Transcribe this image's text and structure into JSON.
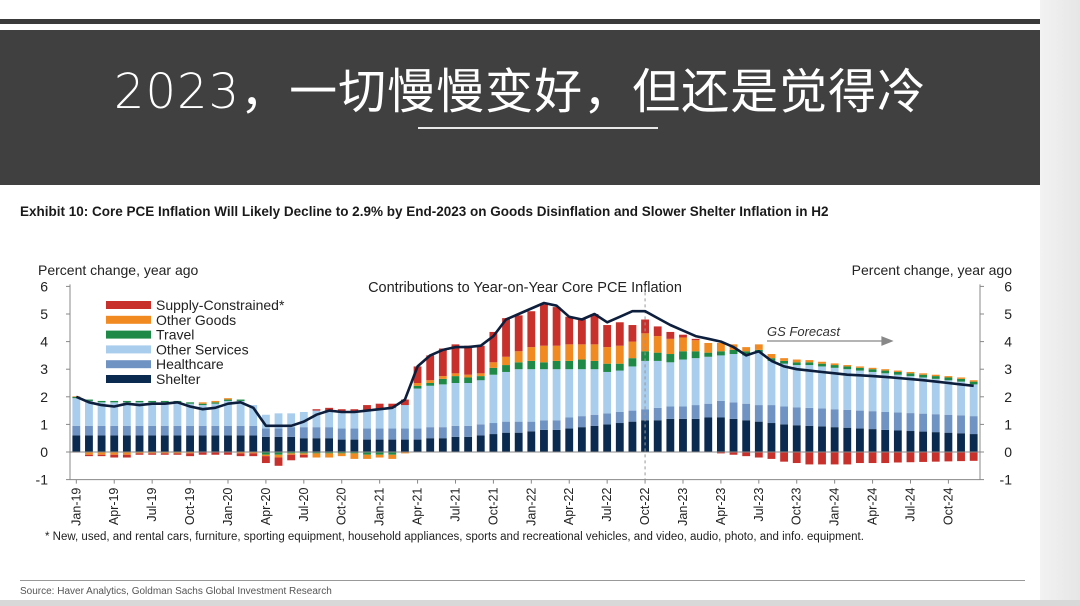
{
  "slide": {
    "title": "2023，一切慢慢变好，但还是觉得冷"
  },
  "exhibit": {
    "title": "Exhibit 10: Core PCE Inflation Will Likely Decline to 2.9% by End-2023 on Goods Disinflation and Slower Shelter Inflation in H2",
    "footnote": "* New, used, and rental cars, furniture, sporting equipment, household appliances, sports and recreational vehicles, and video, audio, photo, and info. equipment.",
    "source": "Source: Haver Analytics, Goldman Sachs Global Investment Research"
  },
  "chart_data": {
    "type": "bar",
    "stacked": true,
    "title": "Contributions to Year-on-Year Core PCE Inflation",
    "ylabel_left": "Percent change, year ago",
    "ylabel_right": "Percent change, year ago",
    "ylim": [
      -1,
      6
    ],
    "yticks": [
      "-1",
      "0",
      "1",
      "2",
      "3",
      "4",
      "5",
      "6"
    ],
    "grid": false,
    "legend_position": "top-left",
    "annotation": "GS Forecast",
    "forecast_start": "Oct-22",
    "tick_labels": [
      "Jan-19",
      "Apr-19",
      "Jul-19",
      "Oct-19",
      "Jan-20",
      "Apr-20",
      "Jul-20",
      "Oct-20",
      "Jan-21",
      "Apr-21",
      "Jul-21",
      "Oct-21",
      "Jan-22",
      "Apr-22",
      "Jul-22",
      "Oct-22",
      "Jan-23",
      "Apr-23",
      "Jul-23",
      "Oct-23",
      "Jan-24",
      "Apr-24",
      "Jul-24",
      "Oct-24"
    ],
    "categories": [
      "Jan-19",
      "Feb-19",
      "Mar-19",
      "Apr-19",
      "May-19",
      "Jun-19",
      "Jul-19",
      "Aug-19",
      "Sep-19",
      "Oct-19",
      "Nov-19",
      "Dec-19",
      "Jan-20",
      "Feb-20",
      "Mar-20",
      "Apr-20",
      "May-20",
      "Jun-20",
      "Jul-20",
      "Aug-20",
      "Sep-20",
      "Oct-20",
      "Nov-20",
      "Dec-20",
      "Jan-21",
      "Feb-21",
      "Mar-21",
      "Apr-21",
      "May-21",
      "Jun-21",
      "Jul-21",
      "Aug-21",
      "Sep-21",
      "Oct-21",
      "Nov-21",
      "Dec-21",
      "Jan-22",
      "Feb-22",
      "Mar-22",
      "Apr-22",
      "May-22",
      "Jun-22",
      "Jul-22",
      "Aug-22",
      "Sep-22",
      "Oct-22",
      "Nov-22",
      "Dec-22",
      "Jan-23",
      "Feb-23",
      "Mar-23",
      "Apr-23",
      "May-23",
      "Jun-23",
      "Jul-23",
      "Aug-23",
      "Sep-23",
      "Oct-23",
      "Nov-23",
      "Dec-23",
      "Jan-24",
      "Feb-24",
      "Mar-24",
      "Apr-24",
      "May-24",
      "Jun-24",
      "Jul-24",
      "Aug-24",
      "Sep-24",
      "Oct-24",
      "Nov-24",
      "Dec-24"
    ],
    "series": [
      {
        "name": "Shelter",
        "color": "#0b2a4f",
        "values": [
          0.6,
          0.6,
          0.6,
          0.6,
          0.6,
          0.6,
          0.6,
          0.6,
          0.6,
          0.6,
          0.6,
          0.6,
          0.6,
          0.6,
          0.6,
          0.55,
          0.55,
          0.55,
          0.5,
          0.5,
          0.5,
          0.45,
          0.45,
          0.45,
          0.45,
          0.45,
          0.45,
          0.45,
          0.5,
          0.5,
          0.55,
          0.55,
          0.6,
          0.65,
          0.7,
          0.7,
          0.75,
          0.8,
          0.8,
          0.85,
          0.9,
          0.95,
          1.0,
          1.05,
          1.1,
          1.15,
          1.15,
          1.2,
          1.2,
          1.2,
          1.25,
          1.25,
          1.2,
          1.15,
          1.1,
          1.05,
          1.0,
          0.97,
          0.95,
          0.93,
          0.9,
          0.88,
          0.85,
          0.83,
          0.8,
          0.78,
          0.76,
          0.74,
          0.72,
          0.7,
          0.68,
          0.65
        ]
      },
      {
        "name": "Healthcare",
        "color": "#6f93c3",
        "values": [
          0.35,
          0.35,
          0.35,
          0.35,
          0.35,
          0.35,
          0.35,
          0.35,
          0.35,
          0.35,
          0.35,
          0.35,
          0.35,
          0.35,
          0.35,
          0.3,
          0.3,
          0.35,
          0.4,
          0.4,
          0.4,
          0.4,
          0.4,
          0.4,
          0.4,
          0.4,
          0.4,
          0.4,
          0.4,
          0.4,
          0.4,
          0.4,
          0.4,
          0.4,
          0.4,
          0.4,
          0.35,
          0.35,
          0.35,
          0.4,
          0.4,
          0.4,
          0.4,
          0.4,
          0.4,
          0.4,
          0.45,
          0.45,
          0.45,
          0.5,
          0.5,
          0.6,
          0.6,
          0.6,
          0.6,
          0.65,
          0.65,
          0.65,
          0.65,
          0.65,
          0.65,
          0.65,
          0.65,
          0.65,
          0.65,
          0.65,
          0.65,
          0.65,
          0.65,
          0.65,
          0.65,
          0.65
        ]
      },
      {
        "name": "Other Services",
        "color": "#a9cdec",
        "values": [
          1.0,
          0.9,
          0.85,
          0.85,
          0.85,
          0.85,
          0.85,
          0.85,
          0.85,
          0.8,
          0.75,
          0.8,
          0.9,
          0.9,
          0.75,
          0.5,
          0.55,
          0.5,
          0.55,
          0.6,
          0.6,
          0.6,
          0.6,
          0.65,
          0.7,
          0.75,
          0.85,
          1.45,
          1.5,
          1.55,
          1.55,
          1.55,
          1.6,
          1.75,
          1.8,
          1.9,
          1.9,
          1.85,
          1.85,
          1.75,
          1.7,
          1.65,
          1.5,
          1.5,
          1.6,
          1.75,
          1.7,
          1.6,
          1.7,
          1.7,
          1.7,
          1.65,
          1.75,
          1.75,
          1.9,
          1.6,
          1.55,
          1.53,
          1.55,
          1.52,
          1.5,
          1.47,
          1.45,
          1.42,
          1.4,
          1.37,
          1.34,
          1.31,
          1.28,
          1.25,
          1.22,
          1.15
        ]
      },
      {
        "name": "Travel",
        "color": "#1f8a47",
        "values": [
          0.05,
          0.05,
          0.05,
          0.05,
          0.05,
          0.05,
          0.05,
          0.05,
          0.05,
          0.05,
          0.05,
          0.05,
          0.05,
          0.05,
          0,
          -0.1,
          -0.1,
          -0.05,
          -0.05,
          -0.05,
          -0.05,
          -0.05,
          -0.05,
          -0.1,
          -0.1,
          -0.1,
          0,
          0.1,
          0.1,
          0.2,
          0.25,
          0.2,
          0.15,
          0.25,
          0.25,
          0.25,
          0.3,
          0.25,
          0.3,
          0.3,
          0.35,
          0.3,
          0.3,
          0.25,
          0.3,
          0.35,
          0.3,
          0.3,
          0.3,
          0.25,
          0.15,
          0.15,
          0.15,
          0.15,
          0.1,
          0.1,
          0.1,
          0.1,
          0.1,
          0.1,
          0.1,
          0.1,
          0.1,
          0.1,
          0.1,
          0.1,
          0.1,
          0.1,
          0.1,
          0.1,
          0.1,
          0.1
        ]
      },
      {
        "name": "Other Goods",
        "color": "#f28a22",
        "values": [
          0.02,
          -0.1,
          -0.1,
          -0.1,
          -0.1,
          -0.05,
          -0.05,
          -0.05,
          -0.05,
          -0.05,
          0.05,
          0.05,
          0.05,
          -0.05,
          -0.05,
          -0.05,
          -0.1,
          -0.05,
          -0.05,
          -0.15,
          -0.15,
          -0.1,
          -0.2,
          -0.15,
          -0.1,
          -0.15,
          -0.05,
          0.1,
          0.1,
          0.1,
          0.1,
          0.1,
          0.1,
          0.2,
          0.3,
          0.4,
          0.5,
          0.6,
          0.55,
          0.6,
          0.55,
          0.6,
          0.6,
          0.65,
          0.6,
          0.65,
          0.6,
          0.55,
          0.5,
          0.4,
          0.35,
          0.3,
          0.2,
          0.15,
          0.2,
          0.15,
          0.1,
          0.1,
          0.08,
          0.07,
          0.06,
          0.05,
          0.05,
          0.05,
          0.05,
          0.05,
          0.05,
          0.05,
          0.05,
          0.05,
          0.05,
          0.05
        ]
      },
      {
        "name": "Supply-Constrained*",
        "color": "#c8302c",
        "values": [
          -0.02,
          -0.05,
          -0.05,
          -0.1,
          -0.1,
          -0.05,
          -0.05,
          -0.05,
          -0.05,
          -0.1,
          -0.1,
          -0.1,
          -0.1,
          -0.1,
          -0.1,
          -0.25,
          -0.3,
          -0.2,
          -0.1,
          0.05,
          0.1,
          0.1,
          0.1,
          0.2,
          0.2,
          0.15,
          0.2,
          0.6,
          0.9,
          1.0,
          1.05,
          1.05,
          1.0,
          1.1,
          1.4,
          1.3,
          1.3,
          1.5,
          1.4,
          1.0,
          0.9,
          1.1,
          0.8,
          0.85,
          0.6,
          0.5,
          0.35,
          0.25,
          0.1,
          0.05,
          0,
          -0.05,
          -0.1,
          -0.15,
          -0.2,
          -0.25,
          -0.35,
          -0.4,
          -0.45,
          -0.45,
          -0.45,
          -0.45,
          -0.4,
          -0.4,
          -0.4,
          -0.38,
          -0.37,
          -0.36,
          -0.35,
          -0.34,
          -0.33,
          -0.32
        ]
      }
    ],
    "line": {
      "color": "#0d1f3c",
      "values": [
        2.0,
        1.8,
        1.7,
        1.65,
        1.75,
        1.7,
        1.75,
        1.75,
        1.8,
        1.65,
        1.55,
        1.6,
        1.75,
        1.8,
        1.6,
        0.95,
        0.95,
        0.95,
        1.1,
        1.35,
        1.5,
        1.45,
        1.45,
        1.5,
        1.55,
        1.6,
        1.9,
        3.1,
        3.5,
        3.7,
        3.8,
        3.8,
        3.85,
        4.2,
        4.8,
        5.0,
        5.2,
        5.4,
        5.3,
        4.9,
        4.8,
        5.0,
        4.7,
        4.9,
        5.1,
        5.1,
        4.85,
        4.6,
        4.4,
        4.2,
        4.1,
        4.0,
        3.8,
        3.5,
        3.65,
        3.3,
        3.1,
        3.0,
        2.95,
        2.9,
        2.85,
        2.8,
        2.78,
        2.75,
        2.72,
        2.68,
        2.64,
        2.6,
        2.55,
        2.5,
        2.45,
        2.4
      ]
    }
  }
}
